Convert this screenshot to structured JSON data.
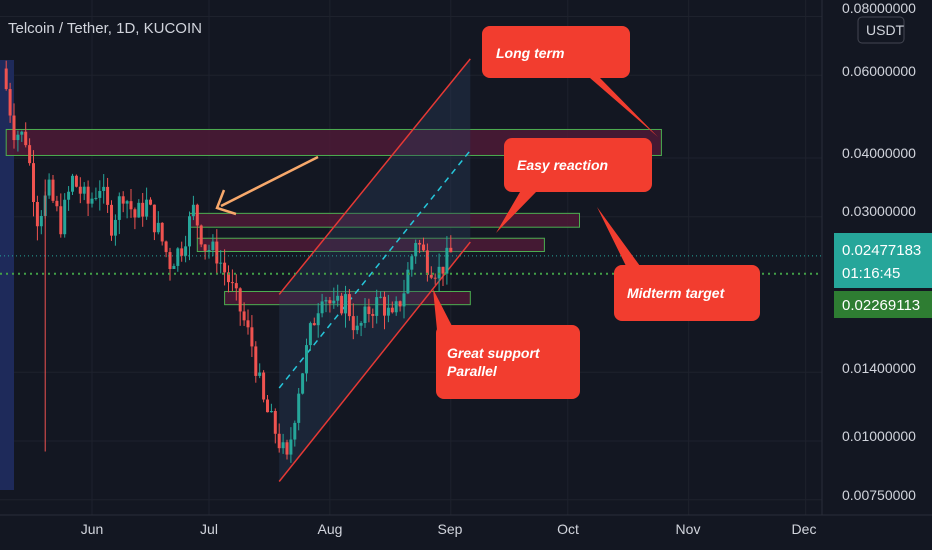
{
  "header": {
    "title": "Telcoin / Tether, 1D, KUCOIN"
  },
  "price_axis": {
    "currency": "USDT",
    "ticks": [
      "0.08000000",
      "0.06000000",
      "0.04000000",
      "0.03000000",
      "0.01400000",
      "0.01000000",
      "0.00750000"
    ],
    "last_price": "0.02477183",
    "countdown": "01:16:45",
    "reference_price": "0.02269113"
  },
  "time_axis": {
    "ticks": [
      "Jun",
      "Jul",
      "Aug",
      "Sep",
      "Oct",
      "Nov",
      "Dec"
    ]
  },
  "annotations": {
    "long_term": "Long term",
    "easy_reaction": "Easy reaction",
    "midterm_target": "Midterm target",
    "support_line1": "Great support",
    "support_line2": "Parallel"
  },
  "colors": {
    "background": "#131722",
    "up": "#26a69a",
    "down": "#ef5350",
    "callout": "#f23d2f",
    "zone_fill": "#4a1a35",
    "zone_border": "#4caf50",
    "channel": "#e53935",
    "arrow": "#f7a86b",
    "last_price_badge": "#26a69a",
    "ref_price_badge": "#2e7d32"
  },
  "chart_data": {
    "type": "candlestick",
    "symbol": "Telcoin / Tether",
    "interval": "1D",
    "exchange": "KUCOIN",
    "y_scale": "log",
    "ylim": [
      0.007,
      0.085
    ],
    "y_ticks": [
      0.08,
      0.06,
      0.04,
      0.03,
      0.014,
      0.01,
      0.0075
    ],
    "x_ticks": [
      "Jun",
      "Jul",
      "Aug",
      "Sep",
      "Oct",
      "Nov",
      "Dec"
    ],
    "last_price": 0.02477183,
    "reference_price": 0.02269113,
    "trend_points": [
      [
        "2021-05-10",
        0.062
      ],
      [
        "2021-05-13",
        0.046
      ],
      [
        "2021-05-16",
        0.044
      ],
      [
        "2021-05-19",
        0.03
      ],
      [
        "2021-05-22",
        0.034
      ],
      [
        "2021-05-25",
        0.029
      ],
      [
        "2021-05-28",
        0.036
      ],
      [
        "2021-06-01",
        0.032
      ],
      [
        "2021-06-04",
        0.035
      ],
      [
        "2021-06-07",
        0.029
      ],
      [
        "2021-06-10",
        0.034
      ],
      [
        "2021-06-13",
        0.03
      ],
      [
        "2021-06-16",
        0.032
      ],
      [
        "2021-06-19",
        0.028
      ],
      [
        "2021-06-22",
        0.024
      ],
      [
        "2021-06-25",
        0.026
      ],
      [
        "2021-06-28",
        0.031
      ],
      [
        "2021-07-01",
        0.026
      ],
      [
        "2021-07-04",
        0.025
      ],
      [
        "2021-07-07",
        0.022
      ],
      [
        "2021-07-10",
        0.019
      ],
      [
        "2021-07-13",
        0.016
      ],
      [
        "2021-07-16",
        0.012
      ],
      [
        "2021-07-19",
        0.0105
      ],
      [
        "2021-07-22",
        0.009
      ],
      [
        "2021-07-25",
        0.013
      ],
      [
        "2021-07-28",
        0.017
      ],
      [
        "2021-07-31",
        0.021
      ],
      [
        "2021-08-03",
        0.019
      ],
      [
        "2021-08-06",
        0.02
      ],
      [
        "2021-08-09",
        0.017
      ],
      [
        "2021-08-12",
        0.019
      ],
      [
        "2021-08-15",
        0.02
      ],
      [
        "2021-08-18",
        0.018
      ],
      [
        "2021-08-21",
        0.021
      ],
      [
        "2021-08-24",
        0.027
      ],
      [
        "2021-08-27",
        0.024
      ],
      [
        "2021-08-30",
        0.023
      ],
      [
        "2021-09-02",
        0.025
      ]
    ],
    "zones": [
      {
        "from": "2021-05-10",
        "to": "2021-10-25",
        "low": 0.0405,
        "high": 0.046,
        "label": "Long term"
      },
      {
        "from": "2021-06-26",
        "to": "2021-10-04",
        "low": 0.0285,
        "high": 0.0305
      },
      {
        "from": "2021-06-28",
        "to": "2021-09-25",
        "low": 0.0253,
        "high": 0.027
      },
      {
        "from": "2021-07-05",
        "to": "2021-09-06",
        "low": 0.0195,
        "high": 0.0208
      }
    ],
    "channel": {
      "lower": [
        [
          "2021-07-19",
          0.0082
        ],
        [
          "2021-09-06",
          0.0265
        ]
      ],
      "upper": [
        [
          "2021-07-19",
          0.0205
        ],
        [
          "2021-09-06",
          0.065
        ]
      ]
    }
  }
}
